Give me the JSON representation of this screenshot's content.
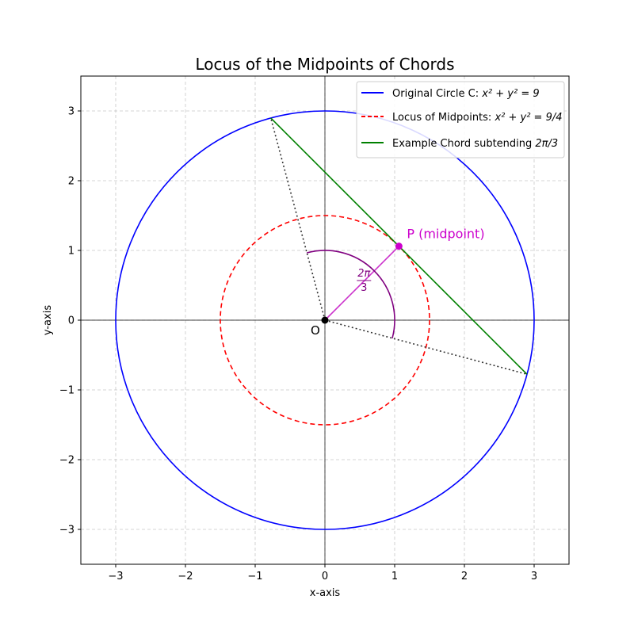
{
  "chart_data": {
    "type": "line",
    "title": "Locus of the Midpoints of Chords",
    "xlabel": "x-axis",
    "ylabel": "y-axis",
    "xlim": [
      -3.5,
      3.5
    ],
    "ylim": [
      -3.5,
      3.5
    ],
    "xticks": [
      -3,
      -2,
      -1,
      0,
      1,
      2,
      3
    ],
    "yticks": [
      -3,
      -2,
      -1,
      0,
      1,
      2,
      3
    ],
    "xtick_labels": [
      "−3",
      "−2",
      "−1",
      "0",
      "1",
      "2",
      "3"
    ],
    "ytick_labels": [
      "−3",
      "−2",
      "−1",
      "0",
      "1",
      "2",
      "3"
    ],
    "grid": true,
    "legend_position": "top-right",
    "series": [
      {
        "name": "Original Circle C",
        "legend_prefix": "Original Circle C: ",
        "legend_math": "x² + y² = 9",
        "kind": "circle",
        "center": [
          0,
          0
        ],
        "radius": 3,
        "color": "#0000ff",
        "dash": "solid"
      },
      {
        "name": "Locus of Midpoints",
        "legend_prefix": "Locus of Midpoints: ",
        "legend_math": "x² + y² = 9/4",
        "kind": "circle",
        "center": [
          0,
          0
        ],
        "radius": 1.5,
        "color": "#ff0000",
        "dash": "dashed"
      },
      {
        "name": "Example Chord",
        "legend_prefix": "Example Chord subtending ",
        "legend_math": "2π/3",
        "kind": "segment",
        "points": [
          [
            -0.776,
            2.898
          ],
          [
            2.898,
            -0.776
          ]
        ],
        "color": "#008000",
        "dash": "solid"
      }
    ],
    "radii": {
      "points": [
        [
          0,
          0
        ],
        [
          -0.776,
          2.898
        ],
        [
          0,
          0
        ],
        [
          2.898,
          -0.776
        ]
      ],
      "color": "#333333",
      "dash": "dotted"
    },
    "midpoint_segment": {
      "points": [
        [
          0,
          0
        ],
        [
          1.061,
          1.061
        ]
      ],
      "color": "#cc33cc"
    },
    "angle_arc": {
      "center": [
        0,
        0
      ],
      "radius": 1.0,
      "start_deg": -15,
      "end_deg": 105,
      "color": "#800080",
      "label_num": "2π",
      "label_den": "3",
      "label_pos": [
        0.56,
        0.58
      ]
    },
    "points": [
      {
        "name": "O",
        "label": "O",
        "x": 0,
        "y": 0,
        "color": "#000000"
      },
      {
        "name": "P",
        "label": "P (midpoint)",
        "x": 1.061,
        "y": 1.061,
        "color": "#cc00cc"
      }
    ]
  }
}
